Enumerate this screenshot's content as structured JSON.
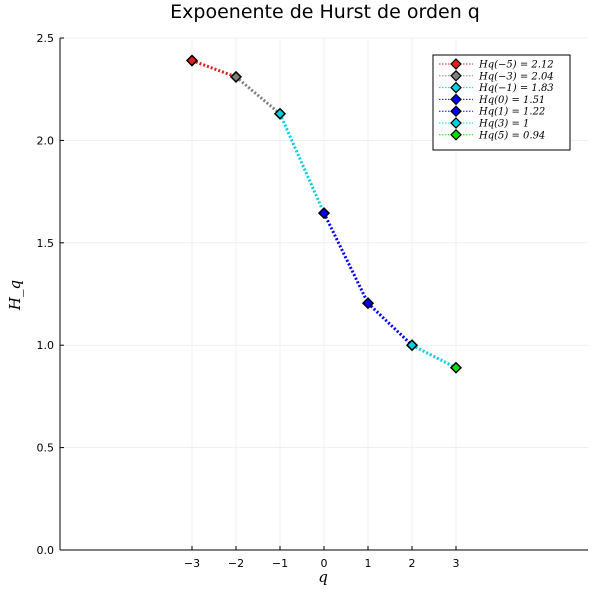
{
  "chart_data": {
    "type": "line",
    "title": "Expoenente de Hurst de orden  q",
    "xlabel": "q",
    "ylabel": "H_q",
    "xlim": [
      -6,
      6
    ],
    "ylim": [
      0,
      2.5
    ],
    "x_ticks": [
      -3,
      -2,
      -1,
      0,
      1,
      2,
      3
    ],
    "x_tick_labels": [
      "−3",
      "−2",
      "−1",
      "0",
      "1",
      "2",
      "3"
    ],
    "y_ticks": [
      0,
      0.5,
      1.0,
      1.5,
      2.0,
      2.5
    ],
    "y_tick_labels": [
      "0.0",
      "0.5",
      "1.0",
      "1.5",
      "2.0",
      "2.5"
    ],
    "grid": true,
    "legend_position": "top-right",
    "series": [
      {
        "name": "Hq(−5) = 2.12",
        "color": "#e0201b",
        "x": [
          -3,
          -2
        ],
        "y": [
          2.39,
          2.31
        ]
      },
      {
        "name": "Hq(−3) = 2.04",
        "color": "#7f7f7f",
        "x": [
          -2,
          -1
        ],
        "y": [
          2.31,
          2.13
        ]
      },
      {
        "name": "Hq(−1) = 1.83",
        "color": "#00d0e0",
        "x": [
          -1,
          0
        ],
        "y": [
          2.13,
          1.645
        ]
      },
      {
        "name": "Hq(0) = 1.51",
        "color": "#0000ff",
        "x": [
          0,
          1
        ],
        "y": [
          1.645,
          1.205
        ]
      },
      {
        "name": "Hq(1) = 1.22",
        "color": "#0000ff",
        "x": [
          1,
          2
        ],
        "y": [
          1.205,
          1.0
        ]
      },
      {
        "name": "Hq(3) = 1",
        "color": "#00d0e0",
        "x": [
          2,
          3
        ],
        "y": [
          1.0,
          0.89
        ]
      },
      {
        "name": "Hq(5) = 0.94",
        "color": "#00e000",
        "x": [
          3
        ],
        "y": [
          0.89
        ]
      }
    ]
  }
}
